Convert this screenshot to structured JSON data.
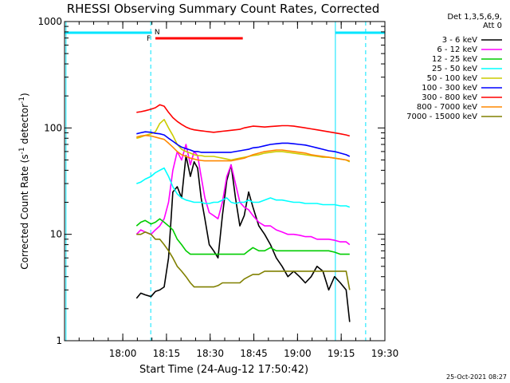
{
  "chart_data": {
    "type": "line",
    "title": "RHESSI Observing Summary Count Rates, Corrected",
    "xlabel": "Start Time (24-Aug-12 17:50:42)",
    "ylabel": "Corrected Count Rate (s⁻¹ detector⁻¹)",
    "ylabel_parts": {
      "main": "Corrected Count Rate (s",
      "exp1": "-1",
      "mid": " detector",
      "exp2": "-1",
      "end": ")"
    },
    "y_scale": "log",
    "ylim": [
      1,
      1000
    ],
    "xlim_minutes": [
      -10.7,
      99.3
    ],
    "xticks": [
      {
        "label": "18:00",
        "t": 9.3
      },
      {
        "label": "18:15",
        "t": 24.3
      },
      {
        "label": "18:30",
        "t": 39.3
      },
      {
        "label": "18:45",
        "t": 54.3
      },
      {
        "label": "19:00",
        "t": 69.3
      },
      {
        "label": "19:15",
        "t": 84.3
      },
      {
        "label": "19:30",
        "t": 99.3
      }
    ],
    "yticks": [
      {
        "label": "1",
        "v": 1
      },
      {
        "label": "10",
        "v": 10
      },
      {
        "label": "100",
        "v": 100
      },
      {
        "label": "1000",
        "v": 1000
      }
    ],
    "legend_header": [
      "Det 1,3,5,6,9,",
      "Att 0"
    ],
    "legend_position": "right",
    "timestamp": "25-Oct-2021 08:27",
    "annotations": {
      "night_marker": "N",
      "flare_marker": "F",
      "night_color": "#00e5ff",
      "flare_color": "#ff0000",
      "night_intervals": [
        [
          -10.7,
          19.3
        ],
        [
          82.3,
          99.3
        ]
      ],
      "night_dashed_times": [
        18.9,
        92.7
      ],
      "night_solid_times": [
        -10.2,
        82.3
      ],
      "flare_interval": [
        20.5,
        50.5
      ]
    },
    "series": [
      {
        "name": "3 - 6 keV",
        "color": "#000000",
        "t": [
          14.0,
          15.5,
          17.0,
          19.0,
          20.5,
          22.0,
          23.5,
          25.0,
          26.5,
          28.0,
          29.5,
          31.0,
          32.5,
          33.8,
          35.0,
          36.2,
          37.5,
          39.0,
          40.5,
          42.0,
          43.5,
          45.0,
          46.5,
          48.0,
          49.5,
          51.0,
          52.5,
          54.0,
          56.0,
          58.0,
          60.0,
          62.0,
          64.0,
          66.0,
          68.0,
          70.0,
          72.0,
          74.0,
          76.0,
          78.0,
          80.0,
          82.0,
          84.0,
          86.0,
          87.2
        ],
        "v": [
          2.5,
          2.8,
          2.7,
          2.6,
          2.9,
          3.0,
          3.2,
          6.0,
          25.0,
          28.0,
          22.0,
          55.0,
          35.0,
          48.0,
          42.0,
          22.0,
          14.0,
          8.0,
          7.0,
          6.0,
          15.0,
          32.0,
          45.0,
          22.0,
          12.0,
          15.0,
          25.0,
          18.0,
          12.0,
          10.0,
          8.0,
          6.0,
          5.0,
          4.0,
          4.5,
          4.0,
          3.5,
          4.0,
          5.0,
          4.5,
          3.0,
          4.0,
          3.5,
          3.0,
          1.5
        ]
      },
      {
        "name": "6 - 12 keV",
        "color": "#ff00ff",
        "t": [
          14.0,
          15.5,
          17.0,
          19.0,
          20.5,
          22.0,
          23.5,
          25.0,
          26.5,
          28.0,
          29.5,
          31.0,
          32.5,
          33.8,
          35.0,
          36.2,
          37.5,
          39.0,
          40.5,
          42.0,
          43.5,
          45.0,
          46.5,
          48.0,
          49.5,
          51.0,
          52.5,
          54.0,
          56.0,
          58.0,
          60.0,
          62.0,
          64.0,
          66.0,
          68.0,
          70.0,
          72.0,
          74.0,
          76.0,
          78.0,
          80.0,
          82.0,
          84.0,
          86.0,
          87.2
        ],
        "v": [
          10.0,
          11.0,
          10.5,
          10.0,
          11.0,
          12.0,
          14.0,
          20.0,
          40.0,
          60.0,
          50.0,
          70.0,
          45.0,
          60.0,
          55.0,
          35.0,
          22.0,
          16.0,
          15.0,
          14.0,
          20.0,
          35.0,
          45.0,
          30.0,
          20.0,
          18.0,
          17.0,
          15.0,
          13.0,
          12.0,
          12.0,
          11.0,
          10.5,
          10.0,
          10.0,
          9.8,
          9.5,
          9.5,
          9.0,
          9.0,
          9.0,
          8.8,
          8.5,
          8.5,
          8.0
        ]
      },
      {
        "name": "12 - 25 keV",
        "color": "#00cc00",
        "t": [
          14.0,
          15.5,
          17.0,
          19.0,
          20.5,
          22.0,
          23.5,
          25.0,
          26.5,
          28.0,
          29.5,
          31.0,
          32.5,
          33.8,
          35.0,
          36.2,
          37.5,
          39.0,
          40.5,
          42.0,
          43.5,
          45.0,
          46.5,
          48.0,
          49.5,
          51.0,
          52.5,
          54.0,
          56.0,
          58.0,
          60.0,
          62.0,
          64.0,
          66.0,
          68.0,
          70.0,
          72.0,
          74.0,
          76.0,
          78.0,
          80.0,
          82.0,
          84.0,
          86.0,
          87.2
        ],
        "v": [
          12.0,
          13.0,
          13.5,
          12.5,
          13.0,
          14.0,
          13.0,
          12.0,
          11.0,
          9.0,
          8.0,
          7.0,
          6.5,
          6.5,
          6.5,
          6.5,
          6.5,
          6.5,
          6.5,
          6.5,
          6.5,
          6.5,
          6.5,
          6.5,
          6.5,
          6.5,
          7.0,
          7.5,
          7.0,
          7.0,
          7.5,
          7.0,
          7.0,
          7.0,
          7.0,
          7.0,
          7.0,
          7.0,
          7.0,
          7.0,
          7.0,
          6.8,
          6.5,
          6.5,
          6.5
        ]
      },
      {
        "name": "25 - 50 keV",
        "color": "#00ffff",
        "t": [
          14.0,
          15.5,
          17.0,
          19.0,
          20.5,
          22.0,
          23.5,
          25.0,
          26.5,
          28.0,
          29.5,
          31.0,
          32.5,
          33.8,
          35.0,
          36.2,
          37.5,
          39.0,
          40.5,
          42.0,
          43.5,
          45.0,
          46.5,
          48.0,
          49.5,
          51.0,
          52.5,
          54.0,
          56.0,
          58.0,
          60.0,
          62.0,
          64.0,
          66.0,
          68.0,
          70.0,
          72.0,
          74.0,
          76.0,
          78.0,
          80.0,
          82.0,
          84.0,
          86.0,
          87.2
        ],
        "v": [
          30.0,
          31.0,
          33.0,
          35.0,
          38.0,
          40.0,
          42.0,
          35.0,
          28.0,
          24.0,
          22.0,
          21.0,
          20.5,
          20.0,
          20.0,
          20.0,
          19.5,
          19.5,
          20.0,
          20.0,
          21.0,
          22.0,
          20.0,
          19.5,
          20.0,
          20.0,
          21.0,
          20.0,
          20.0,
          21.0,
          22.0,
          21.0,
          21.0,
          20.5,
          20.0,
          20.0,
          19.5,
          19.5,
          19.5,
          19.0,
          19.0,
          19.0,
          18.5,
          18.5,
          18.0
        ]
      },
      {
        "name": "50 - 100 keV",
        "color": "#cccc00",
        "t": [
          14.0,
          15.5,
          17.0,
          19.0,
          20.5,
          22.0,
          23.5,
          25.0,
          26.5,
          28.0,
          29.5,
          31.0,
          32.5,
          33.8,
          35.0,
          36.2,
          37.5,
          39.0,
          40.5,
          42.0,
          43.5,
          45.0,
          46.5,
          48.0,
          49.5,
          51.0,
          52.5,
          54.0,
          56.0,
          58.0,
          60.0,
          62.0,
          64.0,
          66.0,
          68.0,
          70.0,
          72.0,
          74.0,
          76.0,
          78.0,
          80.0,
          82.0,
          84.0,
          86.0,
          87.2
        ],
        "v": [
          80.0,
          82.0,
          85.0,
          88.0,
          92.0,
          110.0,
          120.0,
          100.0,
          85.0,
          70.0,
          63.0,
          60.0,
          58.0,
          56.0,
          55.0,
          55.0,
          54.0,
          54.0,
          54.0,
          53.0,
          52.0,
          51.0,
          50.0,
          51.0,
          52.0,
          53.0,
          54.0,
          55.0,
          56.0,
          58.0,
          59.0,
          60.0,
          60.0,
          59.0,
          58.0,
          57.0,
          56.0,
          55.0,
          54.0,
          53.0,
          53.0,
          52.0,
          51.0,
          50.0,
          48.0
        ]
      },
      {
        "name": "100 - 300 keV",
        "color": "#0000ff",
        "t": [
          14.0,
          15.5,
          17.0,
          19.0,
          20.5,
          22.0,
          23.5,
          25.0,
          26.5,
          28.0,
          29.5,
          31.0,
          32.5,
          33.8,
          35.0,
          36.2,
          37.5,
          39.0,
          40.5,
          42.0,
          43.5,
          45.0,
          46.5,
          48.0,
          49.5,
          51.0,
          52.5,
          54.0,
          56.0,
          58.0,
          60.0,
          62.0,
          64.0,
          66.0,
          68.0,
          70.0,
          72.0,
          74.0,
          76.0,
          78.0,
          80.0,
          82.0,
          84.0,
          86.0,
          87.2
        ],
        "v": [
          88.0,
          90.0,
          92.0,
          91.0,
          89.0,
          88.0,
          86.0,
          80.0,
          75.0,
          70.0,
          66.0,
          64.0,
          62.0,
          60.0,
          60.0,
          59.0,
          59.0,
          59.0,
          59.0,
          59.0,
          59.0,
          59.0,
          59.0,
          60.0,
          61.0,
          62.0,
          63.0,
          65.0,
          66.0,
          68.0,
          70.0,
          71.0,
          72.0,
          72.0,
          71.0,
          70.0,
          69.0,
          67.0,
          65.0,
          63.0,
          61.0,
          60.0,
          58.0,
          56.0,
          54.0
        ]
      },
      {
        "name": "300 - 800 keV",
        "color": "#ff0000",
        "t": [
          14.0,
          15.5,
          17.0,
          19.0,
          20.5,
          22.0,
          23.5,
          25.0,
          26.5,
          28.0,
          29.5,
          31.0,
          32.5,
          33.8,
          35.0,
          36.2,
          37.5,
          39.0,
          40.5,
          42.0,
          43.5,
          45.0,
          46.5,
          48.0,
          49.5,
          51.0,
          52.5,
          54.0,
          56.0,
          58.0,
          60.0,
          62.0,
          64.0,
          66.0,
          68.0,
          70.0,
          72.0,
          74.0,
          76.0,
          78.0,
          80.0,
          82.0,
          84.0,
          86.0,
          87.2
        ],
        "v": [
          140.0,
          142.0,
          145.0,
          150.0,
          155.0,
          165.0,
          160.0,
          140.0,
          125.0,
          115.0,
          108.0,
          102.0,
          98.0,
          96.0,
          95.0,
          94.0,
          93.0,
          92.0,
          91.0,
          92.0,
          93.0,
          94.0,
          95.0,
          96.0,
          97.0,
          100.0,
          102.0,
          104.0,
          103.0,
          102.0,
          103.0,
          104.0,
          105.0,
          105.0,
          104.0,
          102.0,
          100.0,
          98.0,
          96.0,
          94.0,
          92.0,
          90.0,
          88.0,
          86.0,
          84.0
        ]
      },
      {
        "name": "800 - 7000 keV",
        "color": "#ff8800",
        "t": [
          14.0,
          15.5,
          17.0,
          19.0,
          20.5,
          22.0,
          23.5,
          25.0,
          26.5,
          28.0,
          29.5,
          31.0,
          32.5,
          33.8,
          35.0,
          36.2,
          37.5,
          39.0,
          40.5,
          42.0,
          43.5,
          45.0,
          46.5,
          48.0,
          49.5,
          51.0,
          52.5,
          54.0,
          56.0,
          58.0,
          60.0,
          62.0,
          64.0,
          66.0,
          68.0,
          70.0,
          72.0,
          74.0,
          76.0,
          78.0,
          80.0,
          82.0,
          84.0,
          86.0,
          87.2
        ],
        "v": [
          82.0,
          84.0,
          85.0,
          84.0,
          82.0,
          80.0,
          78.0,
          72.0,
          66.0,
          60.0,
          56.0,
          54.0,
          52.0,
          51.0,
          50.0,
          49.5,
          49.0,
          49.0,
          49.0,
          49.0,
          49.0,
          49.0,
          49.0,
          50.0,
          51.0,
          52.0,
          54.0,
          56.0,
          58.0,
          60.0,
          61.0,
          62.0,
          62.0,
          61.0,
          60.0,
          59.0,
          58.0,
          56.0,
          55.0,
          54.0,
          53.0,
          52.0,
          51.0,
          50.0,
          49.0
        ]
      },
      {
        "name": "7000 - 15000 keV",
        "color": "#808000",
        "t": [
          14.0,
          15.5,
          17.0,
          19.0,
          20.5,
          22.0,
          23.5,
          25.0,
          26.5,
          28.0,
          29.5,
          31.0,
          32.5,
          33.8,
          35.0,
          36.2,
          37.5,
          39.0,
          40.5,
          42.0,
          43.5,
          45.0,
          46.5,
          48.0,
          49.5,
          51.0,
          52.5,
          54.0,
          56.0,
          58.0,
          60.0,
          62.0,
          64.0,
          66.0,
          68.0,
          70.0,
          72.0,
          74.0,
          76.0,
          78.0,
          80.0,
          82.0,
          84.0,
          86.0,
          87.2
        ],
        "v": [
          10.0,
          10.0,
          10.5,
          10.0,
          9.0,
          9.0,
          8.0,
          7.0,
          6.0,
          5.0,
          4.5,
          4.0,
          3.5,
          3.2,
          3.2,
          3.2,
          3.2,
          3.2,
          3.2,
          3.3,
          3.5,
          3.5,
          3.5,
          3.5,
          3.5,
          3.8,
          4.0,
          4.2,
          4.2,
          4.5,
          4.5,
          4.5,
          4.5,
          4.5,
          4.5,
          4.5,
          4.5,
          4.5,
          4.5,
          4.5,
          4.5,
          4.5,
          4.5,
          4.5,
          3.0
        ]
      }
    ]
  }
}
